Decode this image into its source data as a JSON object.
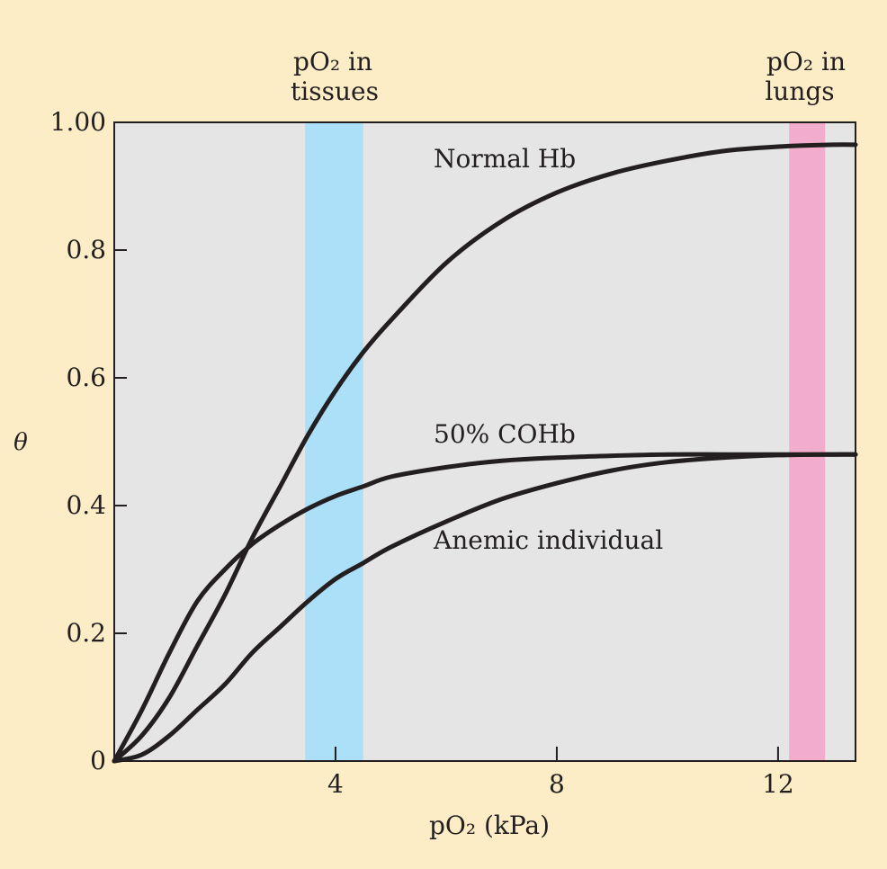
{
  "colors": {
    "background": "#fdedc6",
    "plot_area": "#e5e5e5",
    "tissue_band": "#abe0f8",
    "lung_band": "#f3adcc",
    "curve": "#231f20"
  },
  "chart_data": {
    "type": "line",
    "xlabel": "pO₂ (kPa)",
    "ylabel": "θ",
    "xlim": [
      0,
      13.4
    ],
    "ylim": [
      0,
      1.0
    ],
    "xticks": [
      4,
      8,
      12
    ],
    "xtick_labels": [
      "4",
      "8",
      "12"
    ],
    "yticks": [
      0,
      0.2,
      0.4,
      0.6,
      0.8,
      1.0
    ],
    "ytick_labels": [
      "0",
      "0.2",
      "0.4",
      "0.6",
      "0.8",
      "1.00"
    ],
    "grid": false,
    "bands": [
      {
        "label_line1": "pO₂ in",
        "label_line2": "tissues",
        "x": [
          3.45,
          4.5
        ],
        "color": "#abe0f8"
      },
      {
        "label_line1": "pO₂ in",
        "label_line2": "lungs",
        "x": [
          12.2,
          12.85
        ],
        "color": "#f3adcc"
      }
    ],
    "series": [
      {
        "name": "Normal Hb",
        "x": [
          0,
          0.5,
          1,
          1.5,
          2,
          2.5,
          3,
          3.5,
          4,
          4.5,
          5,
          6,
          7,
          8,
          9,
          10,
          11,
          12,
          13,
          13.4
        ],
        "y": [
          0,
          0.04,
          0.1,
          0.18,
          0.26,
          0.35,
          0.43,
          0.51,
          0.58,
          0.64,
          0.69,
          0.78,
          0.845,
          0.89,
          0.92,
          0.94,
          0.955,
          0.962,
          0.965,
          0.965
        ]
      },
      {
        "name": "50% COHb",
        "x": [
          0,
          0.5,
          1,
          1.5,
          2,
          2.5,
          3,
          3.5,
          4,
          4.5,
          5,
          6,
          7,
          8,
          9,
          10,
          11,
          12,
          13,
          13.4
        ],
        "y": [
          0,
          0.08,
          0.17,
          0.25,
          0.3,
          0.34,
          0.37,
          0.395,
          0.415,
          0.43,
          0.445,
          0.46,
          0.47,
          0.475,
          0.478,
          0.48,
          0.48,
          0.48,
          0.48,
          0.48
        ]
      },
      {
        "name": "Anemic individual",
        "x": [
          0,
          0.5,
          1,
          1.5,
          2,
          2.5,
          3,
          3.5,
          4,
          4.5,
          5,
          6,
          7,
          8,
          9,
          10,
          11,
          12,
          13,
          13.4
        ],
        "y": [
          0,
          0.01,
          0.04,
          0.08,
          0.12,
          0.17,
          0.21,
          0.25,
          0.285,
          0.31,
          0.335,
          0.375,
          0.41,
          0.435,
          0.455,
          0.468,
          0.475,
          0.479,
          0.48,
          0.48
        ]
      }
    ]
  }
}
